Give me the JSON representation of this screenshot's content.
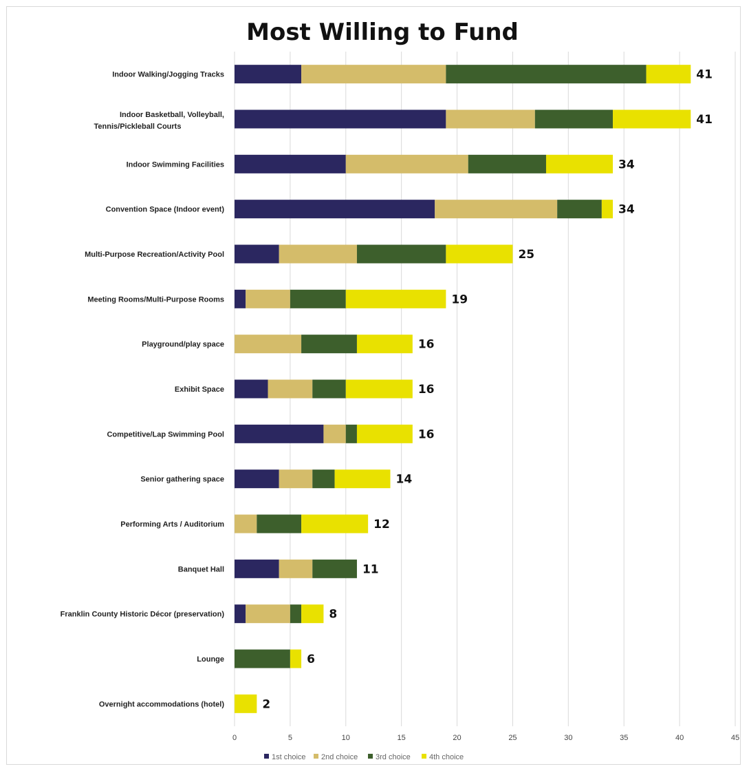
{
  "chart_data": {
    "type": "bar",
    "orientation": "horizontal",
    "stacked": true,
    "title": "Most Willing to Fund",
    "xlabel": "",
    "ylabel": "",
    "xlim": [
      0,
      45
    ],
    "xticks": [
      0,
      5,
      10,
      15,
      20,
      25,
      30,
      35,
      40,
      45
    ],
    "grid": "vertical",
    "legend_position": "bottom",
    "categories": [
      "Indoor Walking/Jogging Tracks",
      "Indoor Basketball, Volleyball, Tennis/Pickleball Courts",
      "Indoor Swimming Facilities",
      "Convention Space (Indoor event)",
      "Multi-Purpose Recreation/Activity Pool",
      "Meeting Rooms/Multi-Purpose Rooms",
      "Playground/play space",
      "Exhibit Space",
      "Competitive/Lap Swimming Pool",
      "Senior gathering space",
      "Performing Arts / Auditorium",
      "Banquet Hall",
      "Franklin County Historic Décor (preservation)",
      "Lounge",
      "Overnight accommodations (hotel)"
    ],
    "series": [
      {
        "name": "1st choice",
        "color": "#2b2760",
        "values": [
          6,
          19,
          10,
          18,
          4,
          1,
          0,
          3,
          8,
          4,
          0,
          4,
          1,
          0,
          0
        ]
      },
      {
        "name": "2nd choice",
        "color": "#d4bc6a",
        "values": [
          13,
          8,
          11,
          11,
          7,
          4,
          6,
          4,
          2,
          3,
          2,
          3,
          4,
          0,
          0
        ]
      },
      {
        "name": "3rd choice",
        "color": "#3d5f2c",
        "values": [
          18,
          7,
          7,
          4,
          8,
          5,
          5,
          3,
          1,
          2,
          4,
          4,
          1,
          5,
          0
        ]
      },
      {
        "name": "4th choice",
        "color": "#e9e100",
        "values": [
          4,
          7,
          6,
          1,
          6,
          9,
          5,
          6,
          5,
          5,
          6,
          0,
          2,
          1,
          2
        ]
      }
    ],
    "totals": [
      41,
      41,
      34,
      34,
      25,
      19,
      16,
      16,
      16,
      14,
      12,
      11,
      8,
      6,
      2
    ]
  }
}
